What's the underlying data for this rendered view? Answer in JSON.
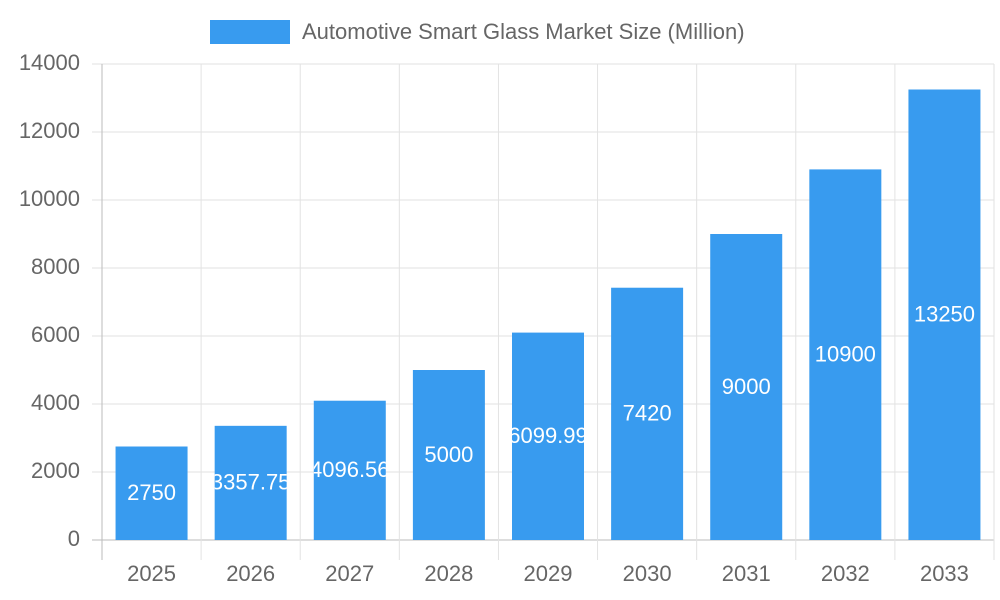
{
  "chart_data": {
    "type": "bar",
    "categories": [
      "2025",
      "2026",
      "2027",
      "2028",
      "2029",
      "2030",
      "2031",
      "2032",
      "2033"
    ],
    "series": [
      {
        "name": "Automotive Smart Glass Market Size (Million)",
        "color": "#389bef",
        "values": [
          2750,
          3357.75,
          4096.56,
          5000,
          6099.99,
          7420,
          9000,
          10900,
          13250
        ]
      }
    ],
    "ylim": [
      0,
      14000
    ],
    "yticks": [
      0,
      2000,
      4000,
      6000,
      8000,
      10000,
      12000,
      14000
    ],
    "grid": true,
    "legend": "top",
    "data_labels": true
  }
}
